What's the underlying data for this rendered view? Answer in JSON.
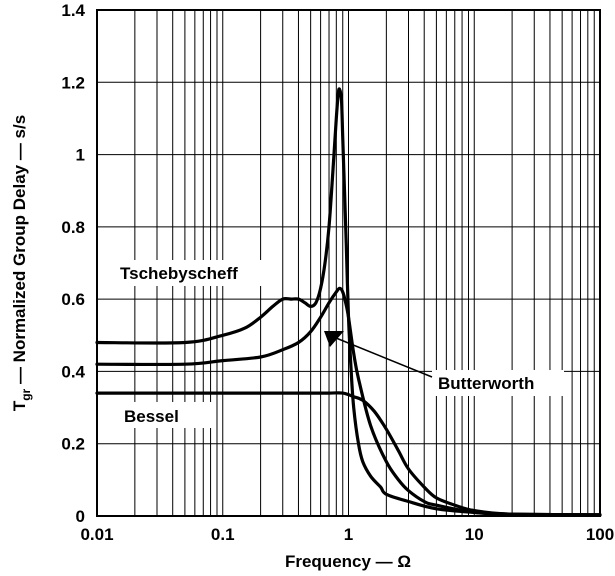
{
  "chart_data": {
    "type": "line",
    "title": "",
    "xlabel": "Frequency — Ω",
    "ylabel": "T",
    "ylabel_sub": "gr",
    "ylabel_rest": " — Normalized Group Delay — s/s",
    "xscale": "log",
    "xlim": [
      0.01,
      100
    ],
    "ylim": [
      0,
      1.4
    ],
    "grid": true,
    "x_ticks": [
      0.01,
      0.1,
      1,
      10,
      100
    ],
    "x_tick_labels": [
      "0.01",
      "0.1",
      "1",
      "10",
      "100"
    ],
    "y_ticks": [
      0,
      0.2,
      0.4,
      0.6,
      0.8,
      1,
      1.2,
      1.4
    ],
    "y_tick_labels": [
      "0",
      "0.2",
      "0.4",
      "0.6",
      "0.8",
      "1",
      "1.2",
      "1.4"
    ],
    "series": [
      {
        "name": "Tschebyscheff",
        "x": [
          0.01,
          0.05,
          0.1,
          0.15,
          0.2,
          0.25,
          0.3,
          0.35,
          0.4,
          0.45,
          0.5,
          0.55,
          0.6,
          0.65,
          0.7,
          0.75,
          0.8,
          0.83,
          0.85,
          0.88,
          0.9,
          0.93,
          0.96,
          1.0,
          1.05,
          1.1,
          1.2,
          1.3,
          1.5,
          1.8,
          2,
          3,
          5,
          10,
          20,
          100
        ],
        "y": [
          0.48,
          0.48,
          0.5,
          0.52,
          0.55,
          0.58,
          0.6,
          0.6,
          0.6,
          0.59,
          0.58,
          0.59,
          0.63,
          0.7,
          0.8,
          0.95,
          1.1,
          1.17,
          1.18,
          1.15,
          1.05,
          0.9,
          0.75,
          0.55,
          0.4,
          0.3,
          0.2,
          0.15,
          0.11,
          0.08,
          0.06,
          0.04,
          0.02,
          0.01,
          0.005,
          0.003
        ]
      },
      {
        "name": "Butterworth",
        "x": [
          0.01,
          0.05,
          0.1,
          0.2,
          0.3,
          0.4,
          0.5,
          0.6,
          0.7,
          0.8,
          0.85,
          0.9,
          0.95,
          1.0,
          1.1,
          1.2,
          1.5,
          2,
          2.5,
          3,
          4,
          5,
          10,
          20,
          100
        ],
        "y": [
          0.42,
          0.42,
          0.43,
          0.44,
          0.46,
          0.48,
          0.51,
          0.55,
          0.59,
          0.62,
          0.63,
          0.62,
          0.59,
          0.55,
          0.45,
          0.38,
          0.25,
          0.15,
          0.1,
          0.07,
          0.04,
          0.03,
          0.01,
          0.005,
          0.003
        ]
      },
      {
        "name": "Bessel",
        "x": [
          0.01,
          0.1,
          0.3,
          0.5,
          0.7,
          0.9,
          1.1,
          1.3,
          1.6,
          2,
          2.5,
          3,
          4,
          5,
          7,
          10,
          20,
          100
        ],
        "y": [
          0.34,
          0.34,
          0.34,
          0.34,
          0.34,
          0.34,
          0.33,
          0.32,
          0.29,
          0.24,
          0.18,
          0.13,
          0.08,
          0.05,
          0.03,
          0.015,
          0.005,
          0.003
        ]
      }
    ],
    "annotations": [
      {
        "text": "Tschebyscheff",
        "series": "Tschebyscheff"
      },
      {
        "text": "Butterworth",
        "series": "Butterworth"
      },
      {
        "text": "Bessel",
        "series": "Bessel"
      }
    ]
  }
}
